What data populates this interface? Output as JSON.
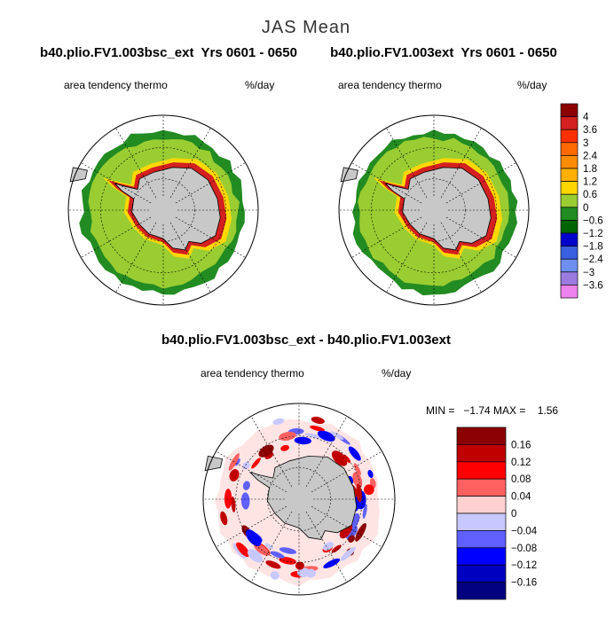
{
  "title": "JAS Mean",
  "panels": [
    {
      "title": "b40.plio.FV1.003bsc_ext  Yrs 0601 - 0650",
      "left": "area tendency thermo",
      "right": "%/day"
    },
    {
      "title": "b40.plio.FV1.003ext  Yrs 0601 - 0650",
      "left": "area tendency thermo",
      "right": "%/day"
    },
    {
      "title": "b40.plio.FV1.003bsc_ext - b40.plio.FV1.003ext",
      "left": "area tendency thermo",
      "right": "%/day",
      "stats": "MIN =   −1.74 MAX =    1.56"
    }
  ],
  "colorbars": [
    {
      "labels": [
        "4",
        "3.6",
        "3",
        "2.4",
        "1.8",
        "1.2",
        "0.6",
        "0",
        "−0.6",
        "−1.2",
        "−1.8",
        "−2.4",
        "−3",
        "−3.6"
      ],
      "colors": [
        "#8b0000",
        "#d42020",
        "#ff3000",
        "#ff6a00",
        "#ff8c00",
        "#ffb000",
        "#ffd700",
        "#9acd32",
        "#228b22",
        "#006400",
        "#0000cd",
        "#3a5fe0",
        "#6e8ef0",
        "#9b7be0",
        "#ee82ee"
      ]
    },
    {
      "labels": [
        "0.16",
        "0.12",
        "0.08",
        "0.04",
        "0",
        "−0.04",
        "−0.08",
        "−0.12",
        "−0.16"
      ],
      "colors": [
        "#8b0000",
        "#c00000",
        "#ff0000",
        "#ff6060",
        "#ffd0d0",
        "#c8c8ff",
        "#6060ff",
        "#0000ff",
        "#0000c0",
        "#000080"
      ]
    }
  ]
}
